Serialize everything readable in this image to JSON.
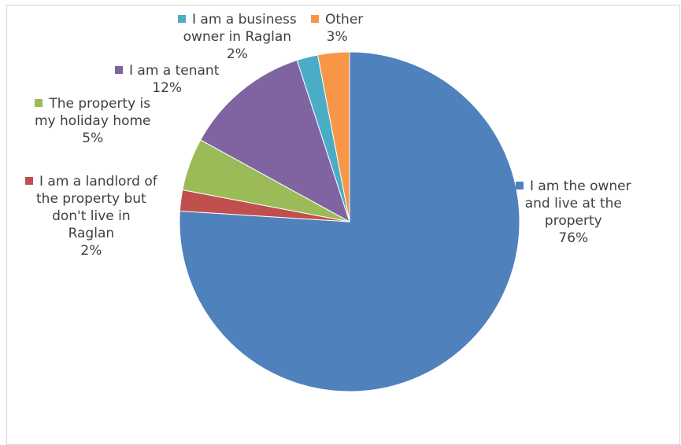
{
  "chart_data": {
    "type": "pie",
    "title": "",
    "categories": [
      "I am the owner and live at the property",
      "I am a landlord of the property but don't live in Raglan",
      "The property is my holiday home",
      "I am a tenant",
      "I am a business owner in Raglan",
      "Other"
    ],
    "values": [
      76,
      2,
      5,
      12,
      2,
      3
    ],
    "value_labels": [
      "76%",
      "2%",
      "5%",
      "12%",
      "2%",
      "3%"
    ],
    "colors": [
      "#4F81BD",
      "#C0504D",
      "#9BBB59",
      "#8064A2",
      "#4BACC6",
      "#F79646"
    ],
    "start_angle_deg": 0,
    "direction": "clockwise",
    "legend": "none"
  },
  "labels": {
    "owner": {
      "lines": [
        "I am the owner",
        "and live at the",
        "property"
      ],
      "pct": "76%"
    },
    "landlord": {
      "lines": [
        "I am a landlord of",
        "the property but",
        "don't live in",
        "Raglan"
      ],
      "pct": "2%"
    },
    "holiday": {
      "lines": [
        "The property is",
        "my holiday home"
      ],
      "pct": "5%"
    },
    "tenant": {
      "lines": [
        "I am a tenant"
      ],
      "pct": "12%"
    },
    "business": {
      "lines": [
        "I am a business",
        "owner in Raglan"
      ],
      "pct": "2%"
    },
    "other": {
      "lines": [
        "Other"
      ],
      "pct": "3%"
    }
  }
}
